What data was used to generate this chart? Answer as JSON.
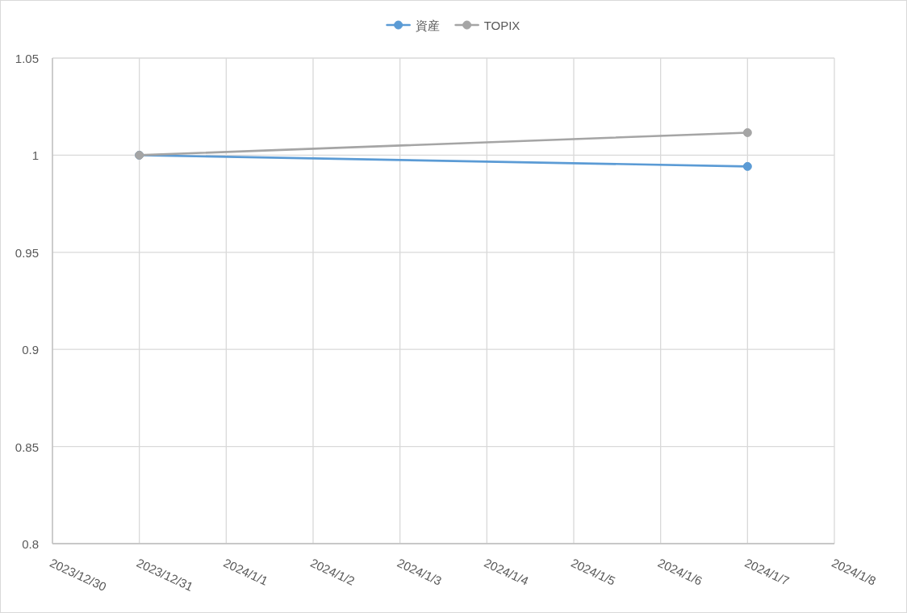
{
  "chart_data": {
    "type": "line",
    "x": [
      "2023-12-31",
      "2024-01-07"
    ],
    "series": [
      {
        "name": "資産",
        "color": "#5b9bd5",
        "values": [
          1,
          0.9942
        ]
      },
      {
        "name": "TOPIX",
        "color": "#a5a5a5",
        "values": [
          1,
          1.0116
        ]
      }
    ],
    "xlim": [
      "2023-12-30",
      "2024-01-08"
    ],
    "xticks": [
      {
        "value": "2023-12-30",
        "label": "2023/12/30"
      },
      {
        "value": "2023-12-31",
        "label": "2023/12/31"
      },
      {
        "value": "2024-01-01",
        "label": "2024/1/1"
      },
      {
        "value": "2024-01-02",
        "label": "2024/1/2"
      },
      {
        "value": "2024-01-03",
        "label": "2024/1/3"
      },
      {
        "value": "2024-01-04",
        "label": "2024/1/4"
      },
      {
        "value": "2024-01-05",
        "label": "2024/1/5"
      },
      {
        "value": "2024-01-06",
        "label": "2024/1/6"
      },
      {
        "value": "2024-01-07",
        "label": "2024/1/7"
      },
      {
        "value": "2024-01-08",
        "label": "2024/1/8"
      }
    ],
    "ylim": [
      0.8,
      1.05
    ],
    "yticks": [
      0.8,
      0.85,
      0.9,
      0.95,
      1,
      1.05
    ],
    "grid": true,
    "legend": "top",
    "marker": "circle"
  }
}
